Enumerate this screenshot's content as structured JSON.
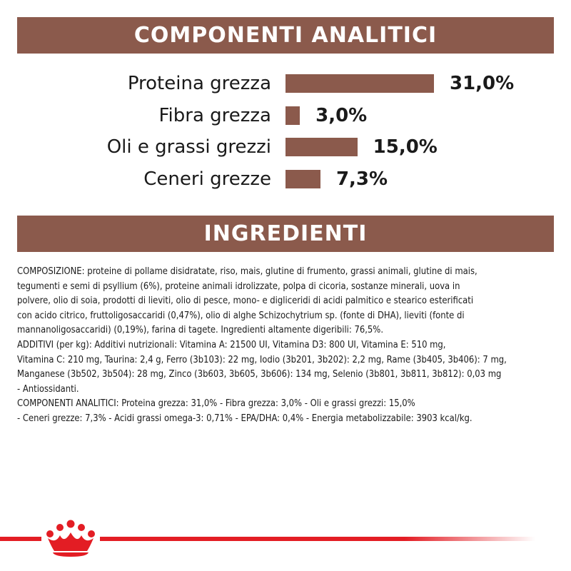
{
  "sections": {
    "analytical_title": "COMPONENTI ANALITICI",
    "ingredients_title": "INGREDIENTI"
  },
  "analytical_components": [
    {
      "label": "Proteina grezza",
      "value_text": "31,0%",
      "value": 31.0
    },
    {
      "label": "Fibra grezza",
      "value_text": "3,0%",
      "value": 3.0
    },
    {
      "label": "Oli e grassi grezzi",
      "value_text": "15,0%",
      "value": 15.0
    },
    {
      "label": "Ceneri grezze",
      "value_text": "7,3%",
      "value": 7.3
    }
  ],
  "ingredients_lines": [
    "COMPOSIZIONE: proteine di pollame disidratate, riso, mais, glutine di frumento, grassi animali, glutine di mais,",
    "tegumenti e semi di psyllium (6%), proteine animali idrolizzate, polpa di cicoria, sostanze minerali, uova in",
    "polvere, olio di soia, prodotti di lieviti, olio di pesce, mono- e digliceridi di acidi palmitico e stearico esterificati",
    "con acido citrico, fruttoligosaccaridi (0,47%), olio di alghe Schizochytrium sp. (fonte di DHA), lieviti (fonte di",
    "mannanoligosaccaridi) (0,19%), farina di tagete. Ingredienti altamente digeribili: 76,5%.",
    "ADDITIVI (per kg): Additivi nutrizionali: Vitamina A: 21500 UI, Vitamina D3: 800 UI, Vitamina E: 510 mg,",
    "Vitamina C: 210 mg, Taurina: 2,4 g, Ferro (3b103): 22 mg, Iodio (3b201, 3b202): 2,2 mg, Rame (3b405, 3b406): 7 mg,",
    "Manganese (3b502, 3b504): 28 mg, Zinco (3b603, 3b605, 3b606): 134 mg, Selenio (3b801, 3b811, 3b812): 0,03 mg",
    "- Antiossidanti.",
    "COMPONENTI ANALITICI: Proteina grezza: 31,0% - Fibra grezza: 3,0% - Oli e grassi grezzi: 15,0%",
    "- Ceneri grezze: 7,3% - Acidi grassi omega-3: 0,71% - EPA/DHA: 0,4% - Energia metabolizzabile: 3903 kcal/kg."
  ],
  "colors": {
    "banner": "#8b5a4c",
    "bar": "#8b5a4c",
    "brand_red": "#e31d24"
  },
  "icons": {
    "brand_logo": "crown-icon"
  }
}
